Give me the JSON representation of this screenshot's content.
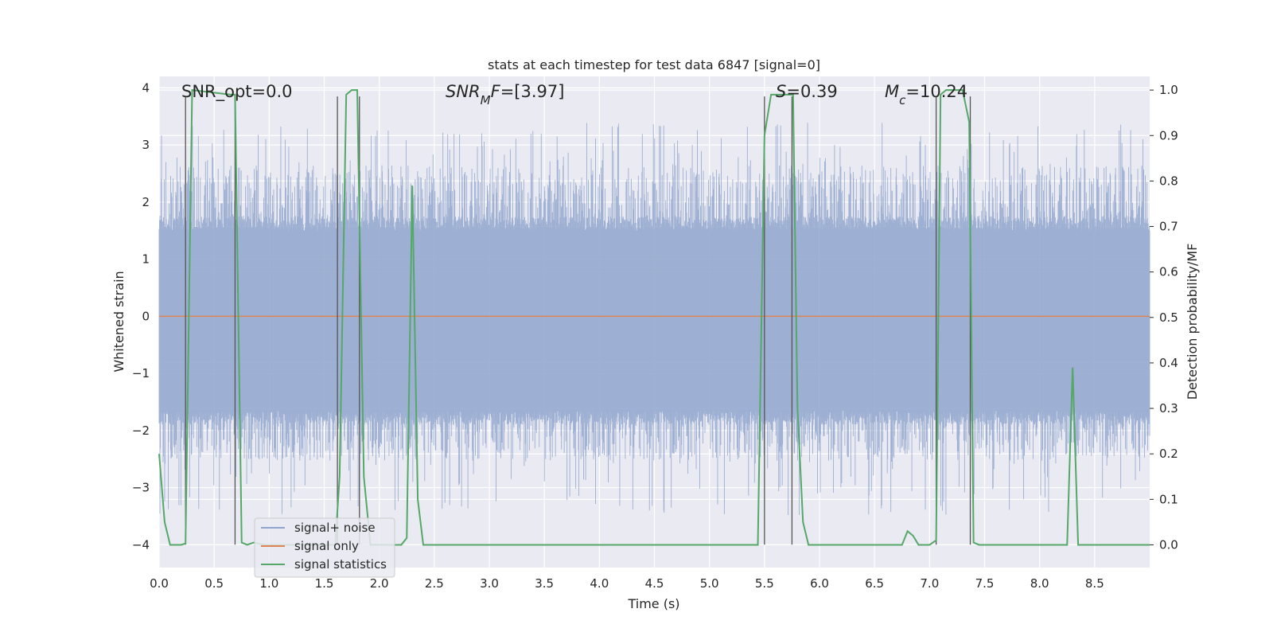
{
  "chart_data": {
    "type": "line",
    "title": "stats at each timestep for test data 6847 [signal=0]",
    "xlabel": "Time (s)",
    "ylabel": "Whitened strain",
    "ylabel_right": "Detection probability/MF",
    "xlim": [
      0.0,
      9.0
    ],
    "ylim": [
      -4.4,
      4.2
    ],
    "ylim_right": [
      -0.05,
      1.03
    ],
    "xticks": [
      "0.0",
      "0.5",
      "1.0",
      "1.5",
      "2.0",
      "2.5",
      "3.0",
      "3.5",
      "4.0",
      "4.5",
      "5.0",
      "5.5",
      "6.0",
      "6.5",
      "7.0",
      "7.5",
      "8.0",
      "8.5"
    ],
    "yticks_left": [
      "−4",
      "−3",
      "−2",
      "−1",
      "0",
      "1",
      "2",
      "3",
      "4"
    ],
    "yticks_right": [
      "0.0",
      "0.1",
      "0.2",
      "0.3",
      "0.4",
      "0.5",
      "0.6",
      "0.7",
      "0.8",
      "0.9",
      "1.0"
    ],
    "grid": true,
    "legend_position": "lower-left",
    "annotations": [
      {
        "prefix": "SNR_opt=0.0",
        "sub": "",
        "suffix": ""
      },
      {
        "prefix": "SNR",
        "sub": "M",
        "suffix": "F=[3.97]"
      },
      {
        "prefix": "S",
        "sub": "",
        "suffix": "=0.39"
      },
      {
        "prefix": "M",
        "sub": "c",
        "suffix": "=10.24"
      }
    ],
    "noise_band": {
      "core": [
        -1.65,
        1.5
      ],
      "mid": [
        -2.2,
        2.3
      ],
      "peak_max": 3.4,
      "peak_min": -3.5
    },
    "series": [
      {
        "name": "signal+ noise",
        "color": "#8fa5cc",
        "axis": "left",
        "description": "whitened noisy strain, approx. Gaussian"
      },
      {
        "name": "signal only",
        "color": "#dd8452",
        "axis": "left",
        "x": [
          0.0,
          9.0
        ],
        "y": [
          0.0,
          0.0
        ]
      },
      {
        "name": "signal statistics",
        "color": "#55a868",
        "axis": "right",
        "x": [
          0.0,
          0.05,
          0.1,
          0.2,
          0.24,
          0.3,
          0.65,
          0.69,
          0.75,
          0.8,
          0.86,
          0.9,
          0.96,
          1.0,
          1.1,
          1.4,
          1.6,
          1.64,
          1.7,
          1.75,
          1.8,
          1.86,
          1.92,
          2.0,
          2.1,
          2.2,
          2.25,
          2.3,
          2.35,
          2.4,
          2.45,
          2.5,
          3.0,
          4.0,
          5.0,
          5.44,
          5.5,
          5.56,
          5.6,
          5.7,
          5.76,
          5.8,
          5.85,
          5.9,
          6.0,
          6.5,
          6.75,
          6.8,
          6.85,
          6.9,
          7.0,
          7.06,
          7.1,
          7.15,
          7.2,
          7.3,
          7.36,
          7.4,
          7.45,
          7.5,
          8.0,
          8.25,
          8.3,
          8.35,
          8.4,
          8.45,
          9.0
        ],
        "y": [
          0.2,
          0.05,
          0.0,
          0.0,
          0.003,
          1.0,
          0.99,
          0.99,
          0.005,
          0.0,
          0.005,
          0.003,
          0.0,
          0.0,
          0.0,
          0.0,
          0.0,
          0.15,
          0.99,
          1.0,
          1.0,
          0.15,
          0.0,
          0.0,
          0.0,
          0.0,
          0.015,
          0.79,
          0.1,
          0.0,
          0.0,
          0.0,
          0.0,
          0.0,
          0.0,
          0.0,
          0.9,
          0.99,
          0.99,
          0.99,
          0.99,
          0.3,
          0.05,
          0.0,
          0.0,
          0.0,
          0.0,
          0.03,
          0.02,
          0.0,
          0.0,
          0.01,
          0.99,
          1.0,
          1.0,
          1.0,
          0.93,
          0.005,
          0.0,
          0.0,
          0.0,
          0.0,
          0.39,
          0.0,
          0.0,
          0.0,
          0.0
        ]
      }
    ],
    "vlines": [
      0.24,
      0.69,
      1.62,
      1.82,
      5.5,
      5.75,
      7.06,
      7.37
    ]
  },
  "colors": {
    "plot_background": "#eaeaf2",
    "grid": "#ffffff",
    "noise": "#8fa5cc",
    "signal_only": "#dd8452",
    "statistics": "#55a868",
    "vline": "#555555"
  }
}
